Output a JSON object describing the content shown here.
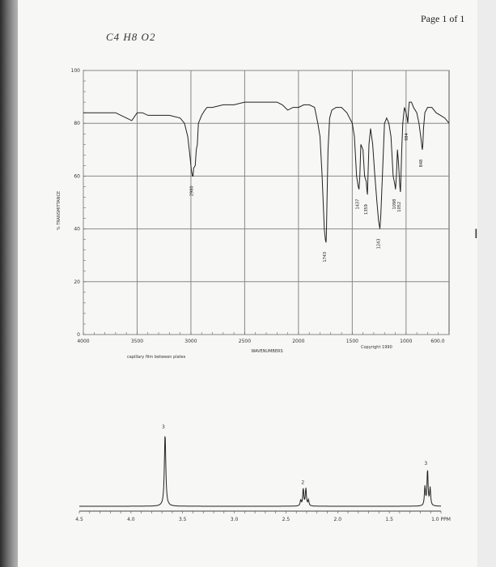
{
  "page": {
    "label": "Page 1 of 1",
    "formula": "C4 H8 O2",
    "watermark": "",
    "cursor": "I"
  },
  "chart_data": [
    {
      "type": "line",
      "title": "",
      "xlabel": "WAVENUMBERS",
      "ylabel": "% TRANSMITTANCE",
      "sample_note": "capillary film between plates",
      "copyright": "Copyright 1990",
      "xlim": [
        4000,
        600
      ],
      "ylim": [
        0,
        100
      ],
      "x_ticks": [
        {
          "value": 4000,
          "label": "4000"
        },
        {
          "value": 3500,
          "label": "3500"
        },
        {
          "value": 3000,
          "label": "3000"
        },
        {
          "value": 2500,
          "label": "2500"
        },
        {
          "value": 2000,
          "label": "2000"
        },
        {
          "value": 1500,
          "label": "1500"
        },
        {
          "value": 1000,
          "label": "1000"
        },
        {
          "value": 600,
          "label": "600.0"
        }
      ],
      "y_ticks": [
        {
          "value": 100,
          "label": "100"
        },
        {
          "value": 80,
          "label": "80"
        },
        {
          "value": 60,
          "label": "60"
        },
        {
          "value": 40,
          "label": "40"
        },
        {
          "value": 20,
          "label": "20"
        },
        {
          "value": 0,
          "label": "0"
        }
      ],
      "grid_x": [
        4000,
        3500,
        3000,
        2500,
        2000,
        1500,
        1000
      ],
      "grid_y": [
        100,
        80,
        60,
        40,
        20,
        0
      ],
      "peaks": [
        {
          "x": 2980,
          "y": 60,
          "label": "2980"
        },
        {
          "x": 1743,
          "y": 35,
          "label": "1743"
        },
        {
          "x": 1437,
          "y": 55,
          "label": "1437"
        },
        {
          "x": 1359,
          "y": 53,
          "label": "1359"
        },
        {
          "x": 1243,
          "y": 40,
          "label": "1243"
        },
        {
          "x": 1098,
          "y": 55,
          "label": "1098"
        },
        {
          "x": 1052,
          "y": 54,
          "label": "1052"
        },
        {
          "x": 984,
          "y": 80,
          "label": "984"
        },
        {
          "x": 848,
          "y": 70,
          "label": "848"
        }
      ],
      "series": [
        {
          "x": [
            4000,
            3850,
            3700,
            3600,
            3550,
            3500,
            3450,
            3400,
            3300,
            3200,
            3100,
            3060,
            3030,
            3010,
            2995,
            2985,
            2980,
            2975,
            2960,
            2950,
            2940,
            2930,
            2900,
            2870,
            2850,
            2800,
            2700,
            2600,
            2500,
            2400,
            2300,
            2200,
            2150,
            2100,
            2050,
            2000,
            1950,
            1900,
            1850,
            1820,
            1800,
            1780,
            1760,
            1750,
            1745,
            1743,
            1740,
            1735,
            1725,
            1710,
            1690,
            1650,
            1600,
            1550,
            1500,
            1480,
            1460,
            1445,
            1437,
            1430,
            1420,
            1400,
            1385,
            1370,
            1362,
            1359,
            1355,
            1345,
            1330,
            1310,
            1290,
            1270,
            1255,
            1243,
            1235,
            1220,
            1200,
            1180,
            1160,
            1140,
            1120,
            1105,
            1098,
            1090,
            1080,
            1070,
            1060,
            1055,
            1052,
            1048,
            1040,
            1030,
            1015,
            1000,
            990,
            984,
            978,
            970,
            950,
            930,
            900,
            880,
            860,
            852,
            848,
            844,
            838,
            825,
            800,
            760,
            720,
            680,
            640,
            600
          ],
          "y": [
            84,
            84,
            84,
            82,
            81,
            84,
            84,
            83,
            83,
            83,
            82,
            80,
            75,
            68,
            62,
            60,
            60,
            63,
            64,
            70,
            72,
            80,
            83,
            85,
            86,
            86,
            87,
            87,
            88,
            88,
            88,
            88,
            87,
            85,
            86,
            86,
            87,
            87,
            86,
            80,
            75,
            60,
            40,
            36,
            35,
            35,
            38,
            50,
            70,
            82,
            85,
            86,
            86,
            84,
            80,
            75,
            60,
            56,
            55,
            60,
            72,
            70,
            60,
            58,
            54,
            53,
            58,
            72,
            78,
            72,
            60,
            50,
            43,
            40,
            45,
            60,
            80,
            82,
            80,
            75,
            60,
            57,
            55,
            60,
            70,
            65,
            58,
            55,
            54,
            58,
            70,
            80,
            86,
            84,
            82,
            80,
            84,
            88,
            88,
            86,
            84,
            80,
            74,
            71,
            70,
            72,
            78,
            84,
            86,
            86,
            84,
            83,
            82,
            80
          ]
        }
      ]
    },
    {
      "type": "line",
      "title": "",
      "xlabel": "PPM",
      "ylabel": "",
      "xlim": [
        4.5,
        1.0
      ],
      "x_ticks": [
        {
          "value": 4.5,
          "label": "4.5"
        },
        {
          "value": 4.0,
          "label": "4.0"
        },
        {
          "value": 3.5,
          "label": "3.5"
        },
        {
          "value": 3.0,
          "label": "3.0"
        },
        {
          "value": 2.5,
          "label": "2.5"
        },
        {
          "value": 2.0,
          "label": "2.0"
        },
        {
          "value": 1.5,
          "label": "1.5"
        },
        {
          "value": 1.0,
          "label": "1.0 PPM"
        }
      ],
      "peaks": [
        {
          "shift": 3.67,
          "multiplicity": "singlet",
          "integration": "3",
          "label": "3"
        },
        {
          "shift": 2.32,
          "multiplicity": "quartet",
          "integration": "2",
          "label": "2"
        },
        {
          "shift": 1.13,
          "multiplicity": "triplet",
          "integration": "3",
          "label": "3"
        }
      ]
    }
  ]
}
